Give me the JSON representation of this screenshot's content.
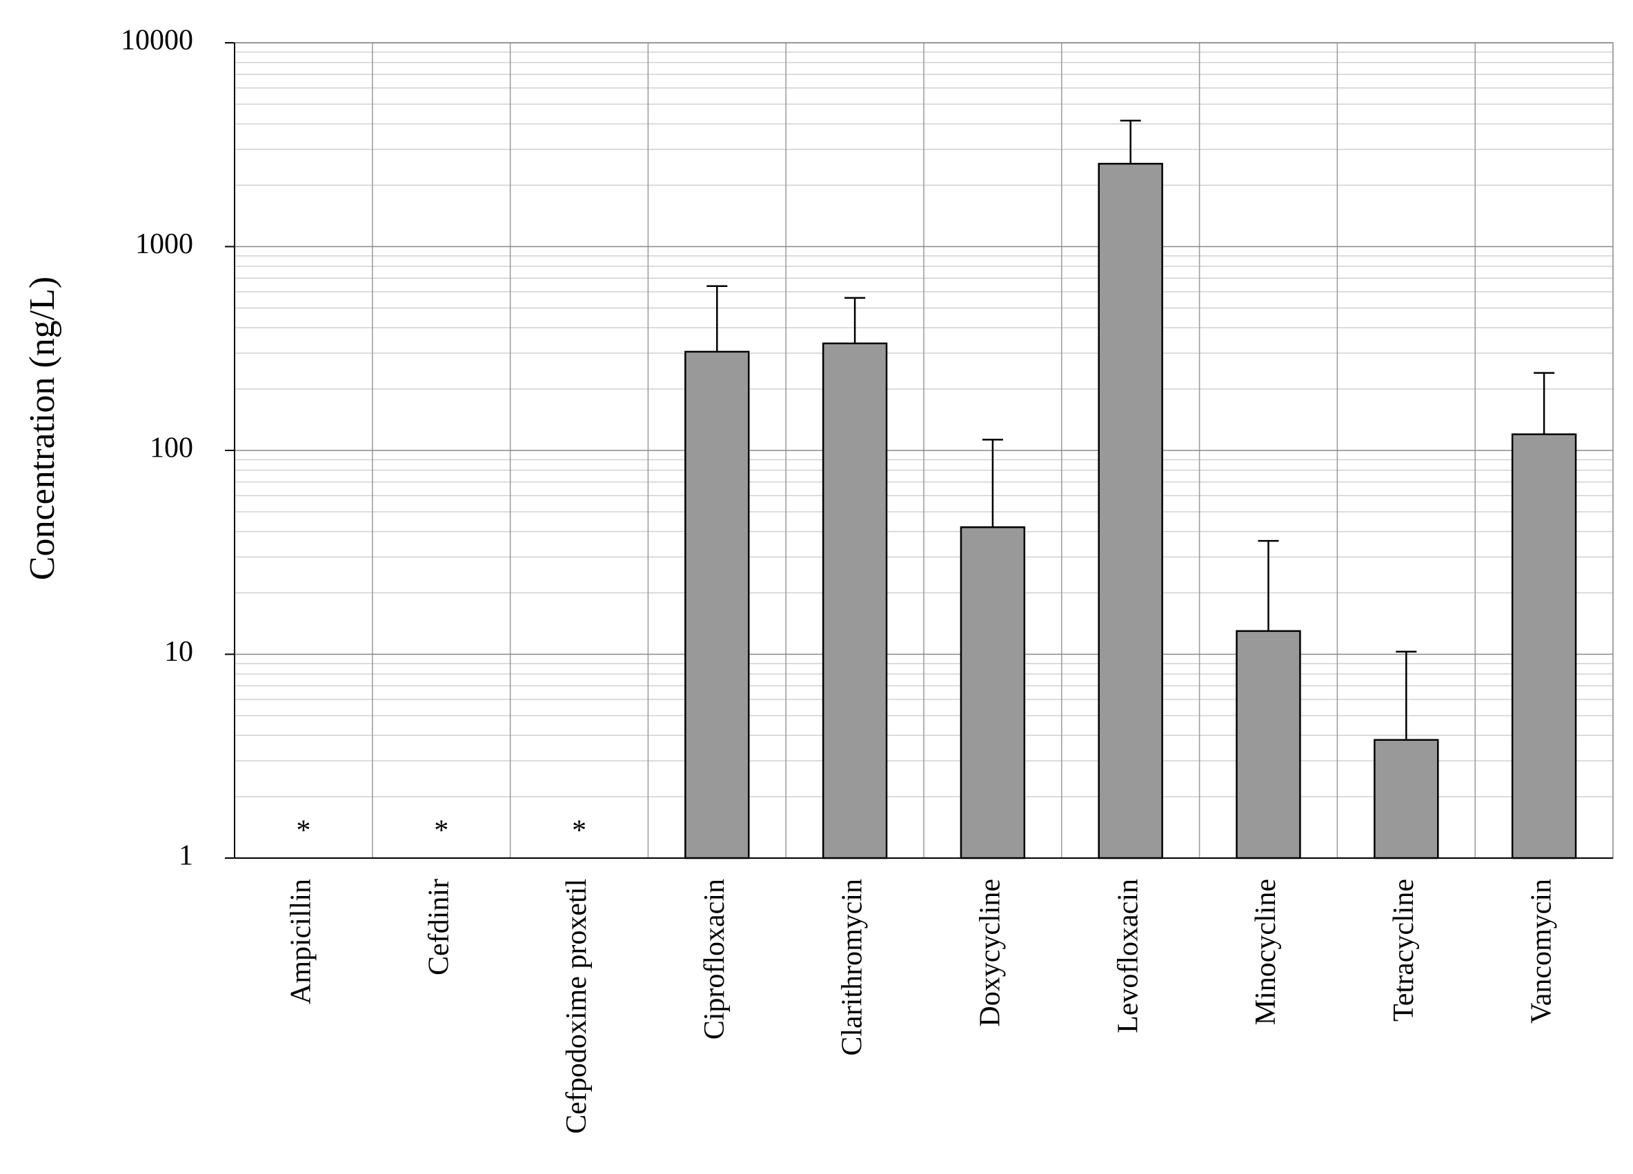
{
  "chart_data": {
    "type": "bar",
    "y_label": "Concentration (ng/L)",
    "categories": [
      "Ampicillin",
      "Cefdinir",
      "Cefpodoxime proxetil",
      "Ciprofloxacin",
      "Clarithromycin",
      "Doxycycline",
      "Levofloxacin",
      "Minocycline",
      "Tetracycline",
      "Vancomycin"
    ],
    "values": [
      null,
      null,
      null,
      305,
      335,
      42,
      2550,
      13,
      3.8,
      120
    ],
    "value_labels": [
      "*",
      "*",
      "*",
      null,
      null,
      null,
      null,
      null,
      null,
      null
    ],
    "errors": [
      null,
      null,
      null,
      335,
      225,
      71,
      1600,
      23,
      6.5,
      120
    ],
    "color": "#999999",
    "yscale": "log",
    "ylim": [
      1,
      10000
    ],
    "yticks": [
      1,
      10,
      100,
      1000,
      10000
    ],
    "grid": true,
    "minor_grid": true
  }
}
